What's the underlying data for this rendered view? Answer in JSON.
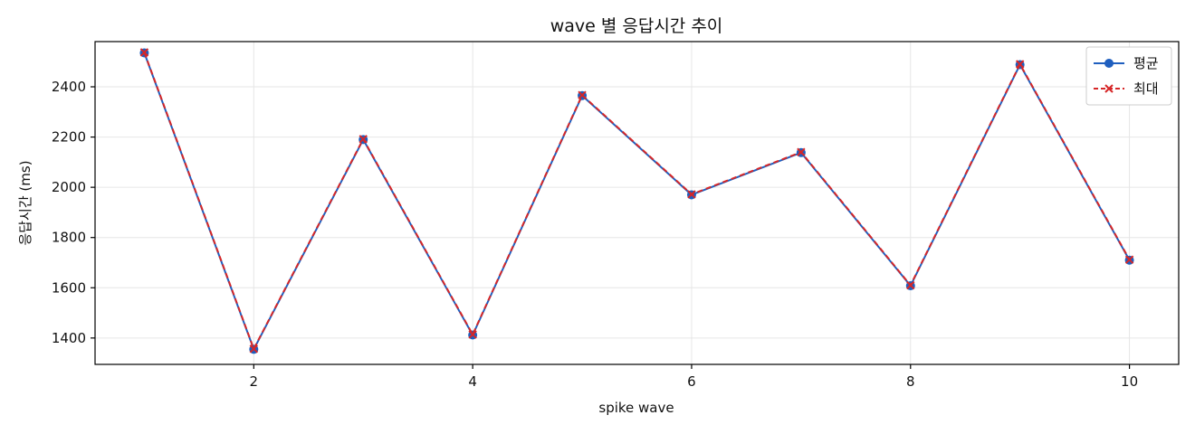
{
  "chart_data": {
    "type": "line",
    "title": "wave 별 응답시간 추이",
    "xlabel": "spike wave",
    "ylabel": "응답시간 (ms)",
    "x": [
      1,
      2,
      3,
      4,
      5,
      6,
      7,
      8,
      9,
      10
    ],
    "xlim": [
      0.55,
      10.45
    ],
    "ylim": [
      1295,
      2580
    ],
    "xticks": [
      2,
      4,
      6,
      8,
      10
    ],
    "yticks": [
      1400,
      1600,
      1800,
      2000,
      2200,
      2400
    ],
    "grid": true,
    "legend_position": "top-right",
    "series": [
      {
        "name": "평균",
        "values": [
          2535,
          1355,
          2190,
          1412,
          2365,
          1970,
          2138,
          1608,
          2488,
          1710
        ],
        "color": "#1f5fbf",
        "line_style": "solid",
        "marker": "circle"
      },
      {
        "name": "최대",
        "values": [
          2537,
          1357,
          2192,
          1414,
          2367,
          1972,
          2140,
          1610,
          2490,
          1712
        ],
        "color": "#d62728",
        "line_style": "dashed",
        "marker": "x"
      }
    ]
  }
}
